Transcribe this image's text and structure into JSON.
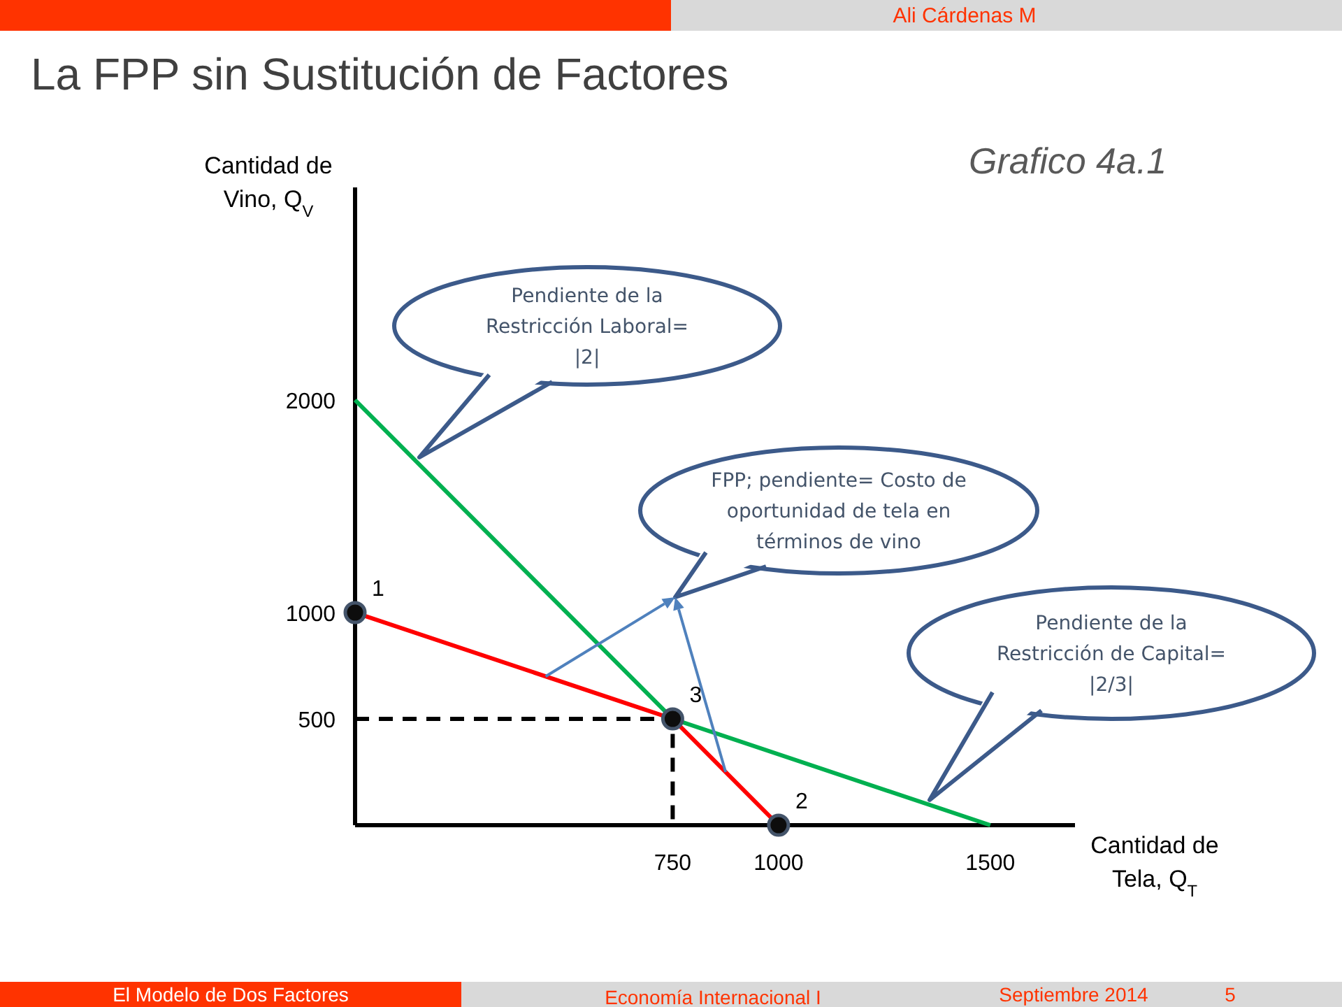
{
  "chart_data": {
    "type": "line",
    "title": "La FPP sin Sustitución de Factores",
    "subtitle": "Grafico 4a.1",
    "xlabel": "Cantidad de\nTela, Q$_{T}$",
    "ylabel": "Cantidad de\nVino, Q$_{V}$",
    "xlim": [
      0,
      1700
    ],
    "ylim": [
      0,
      3000
    ],
    "xticks": [
      750,
      1000,
      1500
    ],
    "yticks": [
      500,
      1000,
      2000
    ],
    "series": [
      {
        "x": [
          0,
          750,
          1500
        ],
        "values": [
          2000,
          500,
          0
        ],
        "color": "#00b050",
        "line_style": "solid",
        "marker": "none"
      },
      {
        "x": [
          0,
          750,
          1000
        ],
        "values": [
          1000,
          500,
          0
        ],
        "color": "#ff0000",
        "line_style": "solid",
        "marker": "none"
      },
      {
        "x": [
          0,
          750,
          750
        ],
        "values": [
          500,
          500,
          0
        ],
        "color": "#000000",
        "line_style": "dashed",
        "marker": "none"
      },
      {
        "type": "scatter",
        "x": [
          0,
          1000,
          750
        ],
        "values": [
          1000,
          0,
          500
        ],
        "color": "#0d0d0d",
        "marker": "circle"
      }
    ],
    "annotations": [
      "Pendiente de la Restricción Laboral= |2|",
      "FPP; pendiente= Costo de oportunidad de tela en términos de vino",
      "Pendiente de la Restricción de Capital= |2/3|",
      {
        "text": "1",
        "x": 0,
        "y": 1000
      },
      {
        "text": "2",
        "x": 1000,
        "y": 0
      },
      {
        "text": "3",
        "x": 750,
        "y": 500
      },
      "Ali Cárdenas M",
      "El Modelo de Dos Factores",
      "Economía Internacional I",
      "Septiembre 2014",
      "5"
    ]
  }
}
